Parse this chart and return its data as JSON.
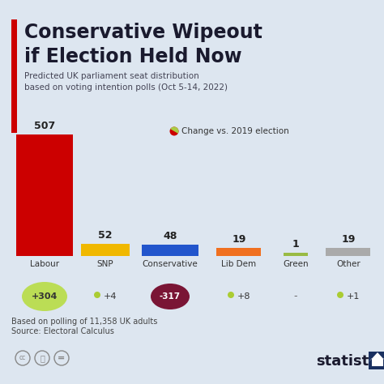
{
  "title_line1": "Conservative Wipeout",
  "title_line2": "if Election Held Now",
  "subtitle": "Predicted UK parliament seat distribution\nbased on voting intention polls (Oct 5-14, 2022)",
  "categories": [
    "Labour",
    "SNP",
    "Conservative",
    "Lib Dem",
    "Green",
    "Other"
  ],
  "values": [
    507,
    52,
    48,
    19,
    1,
    19
  ],
  "bar_colors": [
    "#cc0000",
    "#f0b800",
    "#2255cc",
    "#f07020",
    "#99bb44",
    "#aaaaaa"
  ],
  "changes": [
    "+304",
    "+4",
    "-317",
    "+8",
    "-",
    "+1"
  ],
  "change_large_bg": [
    "#bbdd55",
    null,
    "#7a1535",
    null,
    null,
    null
  ],
  "change_large_text_color": [
    "#333333",
    null,
    "#ffffff",
    null,
    null,
    null
  ],
  "change_dot_colors": [
    null,
    "#aacc33",
    null,
    "#aacc33",
    null,
    "#aacc33"
  ],
  "legend_label": "Change vs. 2019 election",
  "footnote_line1": "Based on polling of 11,358 UK adults",
  "footnote_line2": "Source: Electoral Calculus",
  "bg_color": "#dde6f0",
  "title_color": "#1a1a2e",
  "accent_color": "#cc0000",
  "statista_color": "#1a1a2e"
}
